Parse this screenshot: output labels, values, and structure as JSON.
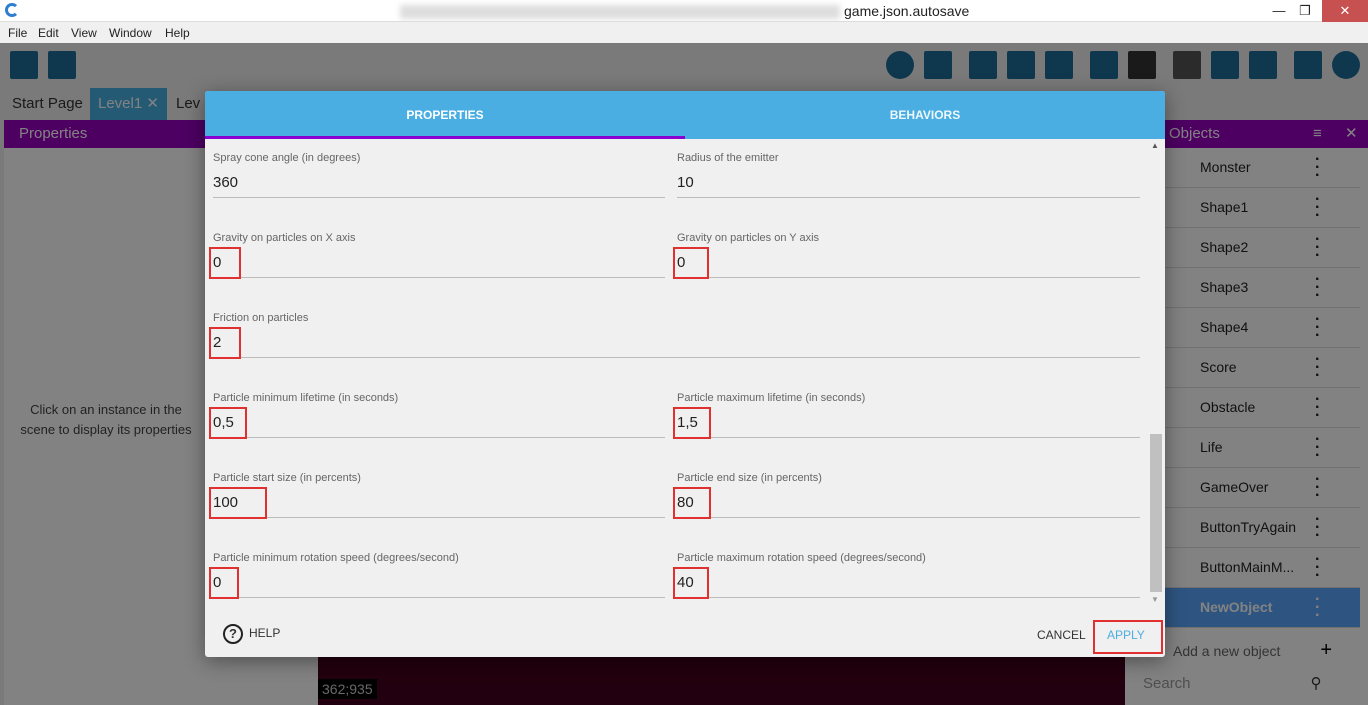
{
  "window": {
    "title": "game.json.autosave",
    "minimize": "—",
    "restore": "❐",
    "close": "✕"
  },
  "menu": [
    "File",
    "Edit",
    "View",
    "Window",
    "Help"
  ],
  "tabs": [
    {
      "label": "Start Page"
    },
    {
      "label": "Level1",
      "close": "✕"
    },
    {
      "label": "Lev"
    }
  ],
  "properties_panel": {
    "title": "Properties",
    "hint": "Click on an instance in the scene to display its properties"
  },
  "coords": "362;935",
  "objects_panel": {
    "title": "Objects",
    "items": [
      "Monster",
      "Shape1",
      "Shape2",
      "Shape3",
      "Shape4",
      "Score",
      "Obstacle",
      "Life",
      "GameOver",
      "ButtonTryAgain",
      "ButtonMainM...",
      "NewObject"
    ],
    "selected": "NewObject",
    "add_label": "Add a new object",
    "search_placeholder": "Search"
  },
  "dialog": {
    "tabs": [
      "PROPERTIES",
      "BEHAVIORS"
    ],
    "active_tab": "PROPERTIES",
    "fields": [
      {
        "label": "Spray cone angle (in degrees)",
        "value": "360"
      },
      {
        "label": "Radius of the emitter",
        "value": "10"
      },
      {
        "label": "Gravity on particles on X axis",
        "value": "0"
      },
      {
        "label": "Gravity on particles on Y axis",
        "value": "0"
      },
      {
        "label": "Friction on particles",
        "value": "2"
      },
      {
        "label": "Particle minimum lifetime (in seconds)",
        "value": "0,5"
      },
      {
        "label": "Particle maximum lifetime (in seconds)",
        "value": "1,5"
      },
      {
        "label": "Particle start size (in percents)",
        "value": "100"
      },
      {
        "label": "Particle end size (in percents)",
        "value": "80"
      },
      {
        "label": "Particle minimum rotation speed (degrees/second)",
        "value": "0"
      },
      {
        "label": "Particle maximum rotation speed (degrees/second)",
        "value": "40"
      }
    ],
    "help": "HELP",
    "cancel": "CANCEL",
    "apply": "APPLY"
  },
  "colors": {
    "accent": "#4aaee2",
    "panel_header": "#9800c0",
    "highlight_box": "#e03030"
  }
}
